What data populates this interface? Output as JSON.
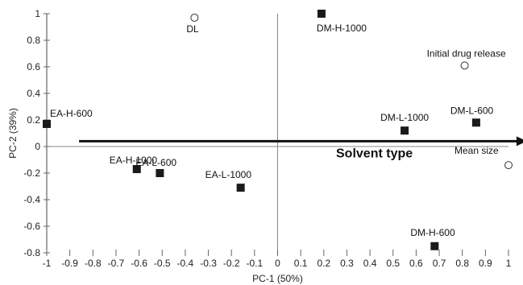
{
  "chart_data": {
    "type": "scatter",
    "title": "",
    "xlabel": "PC-1 (50%)",
    "ylabel": "PC-2 (39%)",
    "xlim": [
      -1,
      1
    ],
    "ylim": [
      -0.8,
      1
    ],
    "x_ticks": [
      "-1",
      "-0.9",
      "-0.8",
      "-0.7",
      "-0.6",
      "-0.5",
      "-0.4",
      "-0.3",
      "-0.2",
      "-0.1",
      "0",
      "0.1",
      "0.2",
      "0.3",
      "0.4",
      "0.5",
      "0.6",
      "0.7",
      "0.8",
      "0.9",
      "1"
    ],
    "y_ticks": [
      "1",
      "0.8",
      "0.6",
      "0.4",
      "0.2",
      "0",
      "-0.2",
      "-0.4",
      "-0.6",
      "-0.8"
    ],
    "grid": false,
    "series": [
      {
        "marker": "filled-square",
        "points": [
          {
            "label": "DM-H-1000",
            "x": 0.19,
            "y": 1.0
          },
          {
            "label": "EA-H-600",
            "x": -1.0,
            "y": 0.17
          },
          {
            "label": "DM-L-1000",
            "x": 0.55,
            "y": 0.12
          },
          {
            "label": "DM-L-600",
            "x": 0.86,
            "y": 0.18
          },
          {
            "label": "EA-H-1000",
            "x": -0.61,
            "y": -0.17
          },
          {
            "label": "EA-L-600",
            "x": -0.51,
            "y": -0.2
          },
          {
            "label": "EA-L-1000",
            "x": -0.16,
            "y": -0.31
          },
          {
            "label": "DM-H-600",
            "x": 0.68,
            "y": -0.75
          }
        ]
      },
      {
        "marker": "open-circle",
        "points": [
          {
            "label": "DL",
            "x": -0.36,
            "y": 0.97
          },
          {
            "label": "Initial drug release",
            "x": 0.81,
            "y": 0.61
          },
          {
            "label": "Mean size",
            "x": 1.0,
            "y": -0.14
          }
        ]
      }
    ],
    "annotations": [
      {
        "text": "Solvent type",
        "type": "arrow",
        "from": [
          -0.86,
          0.04
        ],
        "to": [
          1.08,
          0.04
        ]
      }
    ]
  }
}
